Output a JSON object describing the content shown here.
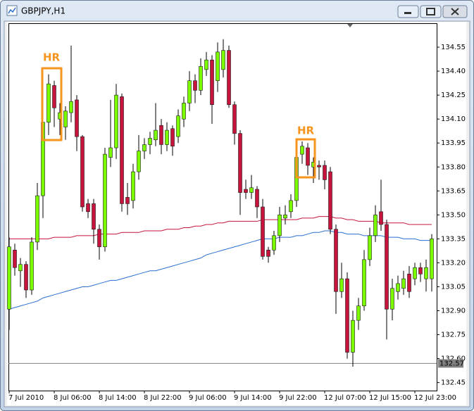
{
  "window": {
    "title": "GBPJPY,H1"
  },
  "chart_data": {
    "type": "candlestick",
    "categories": [
      "7 Jul 2010",
      null,
      null,
      null,
      null,
      null,
      null,
      null,
      "8 Jul 06:00",
      null,
      null,
      null,
      null,
      null,
      null,
      null,
      "8 Jul 14:00",
      null,
      null,
      null,
      null,
      null,
      null,
      null,
      "8 Jul 22:00",
      null,
      null,
      null,
      null,
      null,
      null,
      null,
      "9 Jul 06:00",
      null,
      null,
      null,
      null,
      null,
      null,
      null,
      "9 Jul 14:00",
      null,
      null,
      null,
      null,
      null,
      null,
      null,
      "9 Jul 22:00",
      null,
      null,
      null,
      null,
      null,
      null,
      null,
      "12 Jul 07:00",
      null,
      null,
      null,
      null,
      null,
      null,
      null,
      "12 Jul 15:00",
      null,
      null,
      null,
      null,
      null,
      null,
      null,
      "12 Jul 23:00",
      null,
      null,
      null
    ],
    "open": [
      132.91,
      133.28,
      133.15,
      133.19,
      133.03,
      133.33,
      133.62,
      134.08,
      134.31,
      134.1,
      134.05,
      134.14,
      134.22,
      133.99,
      133.57,
      133.57,
      133.41,
      133.3,
      133.86,
      133.92,
      134.24,
      133.61,
      133.59,
      133.77,
      133.9,
      133.94,
      133.97,
      134.06,
      133.94,
      134.04,
      133.99,
      134.1,
      134.2,
      134.34,
      134.28,
      134.41,
      134.47,
      134.34,
      134.41,
      134.53,
      134.19,
      134.01,
      133.66,
      133.64,
      133.66,
      133.55,
      133.28,
      133.28,
      133.37,
      133.48,
      133.52,
      133.59,
      133.88,
      133.92,
      133.8,
      133.81,
      133.81,
      133.77,
      133.41,
      133.02,
      133.1,
      132.64,
      132.84,
      132.93,
      133.22,
      133.37,
      133.52,
      133.44,
      132.91,
      133.02,
      133.04,
      133.13,
      133.1,
      133.17,
      133.1,
      133.1
    ],
    "high": [
      133.36,
      133.32,
      133.23,
      133.21,
      133.36,
      133.7,
      134.12,
      134.38,
      134.34,
      134.2,
      134.18,
      134.56,
      134.25,
      134.0,
      133.6,
      133.6,
      133.44,
      133.92,
      134.22,
      134.32,
      134.26,
      133.7,
      133.82,
      134.0,
      133.98,
      134.02,
      134.2,
      134.1,
      134.08,
      134.06,
      134.16,
      134.24,
      134.4,
      134.38,
      134.48,
      134.52,
      134.5,
      134.58,
      134.6,
      134.56,
      134.21,
      134.03,
      133.72,
      133.75,
      133.68,
      133.6,
      133.3,
      133.4,
      133.55,
      133.56,
      133.63,
      133.92,
      133.96,
      133.95,
      133.86,
      133.84,
      133.84,
      133.8,
      133.44,
      133.2,
      133.14,
      132.9,
      132.98,
      133.28,
      133.42,
      133.56,
      133.72,
      133.47,
      133.1,
      133.12,
      133.15,
      133.18,
      133.2,
      133.2,
      133.22,
      133.38
    ],
    "low": [
      132.78,
      133.12,
      133.05,
      132.98,
      133.0,
      133.28,
      133.48,
      134.0,
      134.05,
      134.0,
      133.97,
      134.08,
      133.9,
      133.52,
      133.48,
      133.32,
      133.22,
      133.27,
      133.8,
      133.85,
      133.52,
      133.5,
      133.54,
      133.72,
      133.85,
      133.88,
      133.93,
      133.88,
      133.9,
      133.87,
      133.95,
      134.05,
      134.15,
      134.2,
      134.25,
      134.37,
      134.07,
      134.27,
      134.36,
      134.17,
      133.94,
      133.5,
      133.6,
      133.6,
      133.48,
      133.22,
      133.2,
      133.25,
      133.33,
      133.44,
      133.48,
      133.55,
      133.82,
      133.75,
      133.7,
      133.72,
      133.66,
      133.38,
      132.88,
      132.98,
      132.6,
      132.55,
      132.78,
      132.9,
      133.18,
      133.33,
      133.4,
      132.72,
      132.84,
      132.97,
      133.0,
      132.98,
      133.06,
      133.08,
      133.02,
      133.02
    ],
    "close": [
      133.3,
      133.17,
      133.19,
      133.03,
      133.33,
      133.62,
      134.08,
      134.32,
      134.17,
      134.14,
      134.15,
      134.21,
      133.99,
      133.55,
      133.52,
      133.41,
      133.3,
      133.88,
      133.92,
      134.25,
      133.57,
      133.57,
      133.77,
      133.9,
      133.94,
      133.98,
      134.03,
      133.94,
      134.03,
      133.93,
      134.12,
      134.2,
      134.34,
      134.28,
      134.43,
      134.47,
      134.19,
      134.52,
      134.53,
      134.19,
      134.01,
      133.64,
      133.64,
      133.67,
      133.55,
      133.24,
      133.24,
      133.37,
      133.5,
      133.5,
      133.59,
      133.86,
      133.93,
      133.81,
      133.83,
      133.8,
      133.72,
      133.41,
      133.02,
      133.1,
      132.64,
      132.84,
      132.93,
      133.22,
      133.37,
      133.5,
      133.44,
      132.91,
      133.04,
      133.07,
      133.1,
      133.02,
      133.17,
      133.13,
      133.17,
      133.35
    ],
    "up_color": "#7cfc00",
    "down_color": "#c8143c",
    "ylim": [
      132.4,
      134.7
    ],
    "yticks": [
      134.55,
      {
        "value": 134.4,
        "label": "134.40"
      },
      134.25,
      {
        "value": 134.1,
        "label": "134.10"
      },
      133.95,
      {
        "value": 133.8,
        "label": "133.80"
      },
      133.65,
      {
        "value": 133.5,
        "label": "133.50"
      },
      133.35,
      {
        "value": 133.2,
        "label": "133.20"
      },
      133.05,
      {
        "value": 132.9,
        "label": "132.90"
      },
      132.75,
      {
        "value": 132.6,
        "label": "132.60"
      },
      132.45
    ],
    "grid": false,
    "overlays": [
      {
        "type": "line",
        "color": "#c8143c",
        "values": [
          133.35,
          133.35,
          133.35,
          133.35,
          133.35,
          133.35,
          133.35,
          133.35,
          133.36,
          133.36,
          133.36,
          133.36,
          133.37,
          133.37,
          133.37,
          133.37,
          133.38,
          133.38,
          133.38,
          133.38,
          133.39,
          133.39,
          133.39,
          133.39,
          133.4,
          133.4,
          133.4,
          133.4,
          133.41,
          133.41,
          133.41,
          133.42,
          133.42,
          133.43,
          133.43,
          133.44,
          133.44,
          133.45,
          133.45,
          133.46,
          133.46,
          133.46,
          133.46,
          133.46,
          133.46,
          133.47,
          133.47,
          133.47,
          133.47,
          133.47,
          133.47,
          133.47,
          133.48,
          133.48,
          133.48,
          133.49,
          133.49,
          133.49,
          133.48,
          133.48,
          133.47,
          133.47,
          133.46,
          133.46,
          133.46,
          133.46,
          133.45,
          133.45,
          133.45,
          133.45,
          133.45,
          133.44,
          133.44,
          133.44,
          133.44,
          133.44
        ]
      },
      {
        "type": "line",
        "color": "#2a6ecf",
        "values": [
          132.91,
          132.92,
          132.93,
          132.94,
          132.95,
          132.96,
          132.98,
          132.99,
          133.0,
          133.01,
          133.02,
          133.03,
          133.04,
          133.05,
          133.05,
          133.06,
          133.07,
          133.08,
          133.09,
          133.09,
          133.1,
          133.11,
          133.12,
          133.13,
          133.14,
          133.15,
          133.15,
          133.16,
          133.17,
          133.18,
          133.19,
          133.2,
          133.21,
          133.22,
          133.23,
          133.25,
          133.26,
          133.27,
          133.28,
          133.29,
          133.3,
          133.31,
          133.32,
          133.33,
          133.34,
          133.35,
          133.35,
          133.35,
          133.36,
          133.36,
          133.36,
          133.37,
          133.37,
          133.38,
          133.39,
          133.39,
          133.4,
          133.4,
          133.39,
          133.39,
          133.38,
          133.38,
          133.38,
          133.37,
          133.37,
          133.37,
          133.37,
          133.36,
          133.36,
          133.36,
          133.35,
          133.35,
          133.35,
          133.34,
          133.34,
          133.34
        ]
      }
    ],
    "price_line": 132.57,
    "annotations": [
      {
        "text": "HR",
        "color": "#f7941d"
      },
      {
        "text": "HR",
        "color": "#f7941d"
      }
    ]
  }
}
